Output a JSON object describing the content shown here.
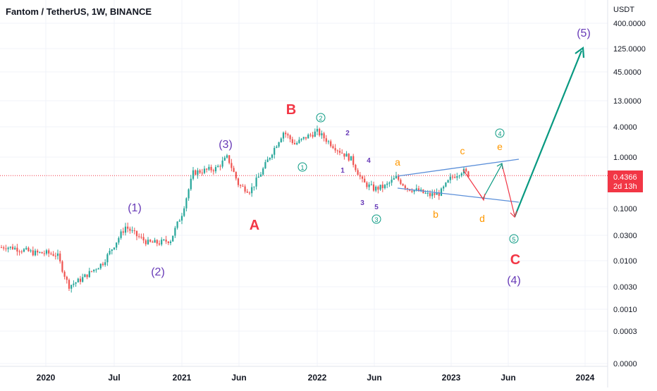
{
  "header": {
    "title": "Fantom / TetherUS, 1W, BINANCE"
  },
  "price_axis": {
    "currency": "USDT",
    "ticks": [
      "400.0000",
      "125.0000",
      "45.0000",
      "13.0000",
      "4.0000",
      "1.0000",
      "0.1000",
      "0.0300",
      "0.0100",
      "0.0030",
      "0.0010",
      "0.0003",
      "0.0000"
    ]
  },
  "price_badge": {
    "price": "0.4366",
    "countdown": "2d 13h",
    "color": "#f23645"
  },
  "time_axis": {
    "ticks": [
      "2020",
      "Jul",
      "2021",
      "Jun",
      "2022",
      "Jun",
      "2023",
      "Jun",
      "2024"
    ]
  },
  "colors": {
    "up": "#26a69a",
    "down": "#ef5350",
    "purple": "#673ab7",
    "red_label": "#f23645",
    "orange": "#ff9800",
    "green_label": "#089981",
    "channel": "#5b8fd9",
    "projection_green": "#089981",
    "projection_red": "#f23645"
  },
  "labels": {
    "w1": "(1)",
    "w2": "(2)",
    "w3": "(3)",
    "w4": "(4)",
    "w5": "(5)",
    "A": "A",
    "B": "B",
    "C": "C",
    "c1": "1",
    "c2": "2",
    "c3": "3",
    "c4": "4",
    "c5": "5",
    "m1": "1",
    "m2": "2",
    "m3": "3",
    "m4": "4",
    "m5": "5",
    "a": "a",
    "b": "b",
    "c": "c",
    "d": "d",
    "e": "e"
  },
  "chart_data": {
    "type": "candlestick",
    "symbol": "Fantom / TetherUS",
    "interval": "1W",
    "exchange": "BINANCE",
    "y_scale": "log",
    "ylim": [
      0.0001,
      400
    ],
    "current_price": 0.4366,
    "x_ticks": [
      "2020",
      "Jul",
      "2021",
      "Jun",
      "2022",
      "Jun",
      "2023",
      "Jun",
      "2024"
    ],
    "price_path": [
      [
        "2019-10",
        0.018
      ],
      [
        "2019-11",
        0.016
      ],
      [
        "2019-12",
        0.014
      ],
      [
        "2020-01",
        0.014
      ],
      [
        "2020-02",
        0.013
      ],
      [
        "2020-03",
        0.003
      ],
      [
        "2020-04",
        0.004
      ],
      [
        "2020-05",
        0.006
      ],
      [
        "2020-06",
        0.009
      ],
      [
        "2020-07",
        0.02
      ],
      [
        "2020-08",
        0.045
      ],
      [
        "2020-09",
        0.03
      ],
      [
        "2020-10",
        0.022
      ],
      [
        "2020-11",
        0.022
      ],
      [
        "2020-12",
        0.025
      ],
      [
        "2021-01",
        0.08
      ],
      [
        "2021-02",
        0.5
      ],
      [
        "2021-03",
        0.55
      ],
      [
        "2021-04",
        0.6
      ],
      [
        "2021-05",
        1.0
      ],
      [
        "2021-06",
        0.28
      ],
      [
        "2021-07",
        0.22
      ],
      [
        "2021-08",
        0.5
      ],
      [
        "2021-09",
        1.3
      ],
      [
        "2021-10",
        3.2
      ],
      [
        "2021-11",
        1.8
      ],
      [
        "2021-12",
        2.5
      ],
      [
        "2022-01",
        3.2
      ],
      [
        "2022-02",
        2.0
      ],
      [
        "2022-03",
        1.3
      ],
      [
        "2022-04",
        0.9
      ],
      [
        "2022-05",
        0.32
      ],
      [
        "2022-06",
        0.24
      ],
      [
        "2022-07",
        0.27
      ],
      [
        "2022-08",
        0.4
      ],
      [
        "2022-09",
        0.25
      ],
      [
        "2022-10",
        0.22
      ],
      [
        "2022-11",
        0.18
      ],
      [
        "2022-12",
        0.2
      ],
      [
        "2023-01",
        0.4
      ],
      [
        "2023-02",
        0.55
      ],
      [
        "2023-02-20",
        0.4366
      ]
    ],
    "annotations": [
      {
        "text": "(1)",
        "x": "2020-08",
        "price": 0.1
      },
      {
        "text": "(2)",
        "x": "2020-10",
        "price": 0.004
      },
      {
        "text": "(3)",
        "x": "2021-04",
        "price": 3.0
      },
      {
        "text": "A",
        "x": "2021-07",
        "price": 0.04
      },
      {
        "text": "B",
        "x": "2021-11",
        "price": 20
      },
      {
        "text": "(4)",
        "x": "2023-06",
        "price": 0.003
      },
      {
        "text": "C",
        "x": "2023-06",
        "price": 0.01
      },
      {
        "text": "(5)",
        "x": "2023-12",
        "price": 400
      }
    ],
    "channel_lines": [
      {
        "from": [
          "2022-08",
          0.35
        ],
        "to": [
          "2023-08",
          0.95
        ]
      },
      {
        "from": [
          "2022-08",
          0.22
        ],
        "to": [
          "2023-08",
          0.12
        ]
      }
    ],
    "projection": [
      {
        "color": "red",
        "from": [
          "2023-02",
          0.55
        ],
        "to": [
          "2023-04",
          0.15
        ]
      },
      {
        "color": "green",
        "from": [
          "2023-04",
          0.15
        ],
        "to": [
          "2023-05",
          0.65
        ]
      },
      {
        "color": "red",
        "from": [
          "2023-05",
          0.65
        ],
        "to": [
          "2023-06",
          0.09
        ]
      },
      {
        "color": "green",
        "from": [
          "2023-06",
          0.08
        ],
        "to": [
          "2023-12",
          150
        ]
      }
    ]
  }
}
